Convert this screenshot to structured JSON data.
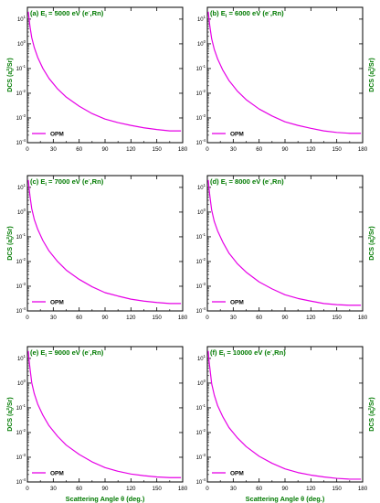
{
  "colors": {
    "curve": "#e600e6",
    "label": "#007a00",
    "axis": "#000000",
    "background": "#ffffff"
  },
  "chart_data": [
    {
      "type": "line",
      "panel": "(a)",
      "title_parts": [
        "(a) E",
        "i",
        " = 5000 eV (e",
        "-",
        ",Rn)"
      ],
      "ylabel_parts": [
        "DCS (a",
        "0",
        "2",
        "/Sr)"
      ],
      "ylabel_side": "left",
      "xlabel": "",
      "x_ticks": [
        0,
        30,
        60,
        90,
        120,
        150,
        180
      ],
      "y_ticks": [
        -4,
        -3,
        -2,
        -1,
        0,
        1
      ],
      "y_scale": "log",
      "xlim": [
        0,
        180
      ],
      "ylim": [
        0.0001,
        30
      ],
      "legend": "bottom-left",
      "series": [
        {
          "name": "OPM",
          "x": [
            1,
            2,
            3,
            5,
            8,
            12,
            18,
            25,
            35,
            45,
            60,
            75,
            90,
            105,
            120,
            135,
            150,
            165,
            178
          ],
          "y": [
            20,
            10,
            5,
            1.8,
            0.7,
            0.28,
            0.1,
            0.04,
            0.015,
            0.007,
            0.003,
            0.0015,
            0.0009,
            0.00065,
            0.0005,
            0.0004,
            0.00034,
            0.0003,
            0.0003
          ]
        }
      ]
    },
    {
      "type": "line",
      "panel": "(b)",
      "title_parts": [
        "(b) E",
        "i",
        " = 6000 eV (e",
        "-",
        ",Rn)"
      ],
      "ylabel_parts": [
        "DCS (a",
        "0",
        "2",
        "/Sr)"
      ],
      "ylabel_side": "right",
      "xlabel": "",
      "x_ticks": [
        0,
        30,
        60,
        90,
        120,
        150,
        180
      ],
      "y_ticks": [
        -4,
        -3,
        -2,
        -1,
        0,
        1
      ],
      "y_scale": "log",
      "xlim": [
        0,
        180
      ],
      "ylim": [
        0.0001,
        30
      ],
      "legend": "bottom-left",
      "series": [
        {
          "name": "OPM",
          "x": [
            1,
            2,
            3,
            5,
            8,
            12,
            18,
            25,
            35,
            45,
            60,
            75,
            90,
            105,
            120,
            135,
            150,
            165,
            178
          ],
          "y": [
            20,
            9.5,
            4.8,
            1.6,
            0.6,
            0.24,
            0.085,
            0.033,
            0.012,
            0.0055,
            0.0023,
            0.0012,
            0.0007,
            0.0005,
            0.00038,
            0.0003,
            0.00026,
            0.00024,
            0.00024
          ]
        }
      ]
    },
    {
      "type": "line",
      "panel": "(c)",
      "title_parts": [
        "(c) E",
        "i",
        " = 7000 eV (e",
        "-",
        ",Rn)"
      ],
      "ylabel_parts": [
        "DCS (a",
        "0",
        "2",
        "/Sr)"
      ],
      "ylabel_side": "left",
      "xlabel": "",
      "x_ticks": [
        0,
        30,
        60,
        90,
        120,
        150,
        180
      ],
      "y_ticks": [
        -4,
        -3,
        -2,
        -1,
        0,
        1
      ],
      "y_scale": "log",
      "xlim": [
        0,
        180
      ],
      "ylim": [
        0.0001,
        30
      ],
      "legend": "bottom-left",
      "series": [
        {
          "name": "OPM",
          "x": [
            1,
            2,
            3,
            5,
            8,
            12,
            18,
            25,
            35,
            45,
            60,
            75,
            90,
            105,
            120,
            135,
            150,
            165,
            178
          ],
          "y": [
            20,
            9,
            4.5,
            1.4,
            0.5,
            0.2,
            0.07,
            0.027,
            0.01,
            0.0045,
            0.0019,
            0.00095,
            0.00055,
            0.0004,
            0.0003,
            0.00025,
            0.00022,
            0.0002,
            0.0002
          ]
        }
      ]
    },
    {
      "type": "line",
      "panel": "(d)",
      "title_parts": [
        "(d) E",
        "i",
        " = 8000 eV (e",
        "-",
        ",Rn)"
      ],
      "ylabel_parts": [
        "DCS (a",
        "0",
        "2",
        "/Sr)"
      ],
      "ylabel_side": "right",
      "xlabel": "",
      "x_ticks": [
        0,
        30,
        60,
        90,
        120,
        150,
        180
      ],
      "y_ticks": [
        -4,
        -3,
        -2,
        -1,
        0,
        1
      ],
      "y_scale": "log",
      "xlim": [
        0,
        180
      ],
      "ylim": [
        0.0001,
        30
      ],
      "legend": "bottom-left",
      "series": [
        {
          "name": "OPM",
          "x": [
            1,
            2,
            3,
            5,
            8,
            12,
            18,
            25,
            35,
            45,
            60,
            75,
            90,
            105,
            120,
            135,
            150,
            165,
            178
          ],
          "y": [
            20,
            8.5,
            4.2,
            1.2,
            0.42,
            0.17,
            0.06,
            0.022,
            0.008,
            0.0037,
            0.0015,
            0.00078,
            0.00045,
            0.00032,
            0.00025,
            0.0002,
            0.00018,
            0.00017,
            0.00017
          ]
        }
      ]
    },
    {
      "type": "line",
      "panel": "(e)",
      "title_parts": [
        "(e) E",
        "i",
        " = 9000 eV (e",
        "-",
        ",Rn)"
      ],
      "ylabel_parts": [
        "DCS (a",
        "0",
        "2",
        "/Sr)"
      ],
      "ylabel_side": "left",
      "xlabel": "Scattering Angle θ (deg.)",
      "x_ticks": [
        0,
        30,
        60,
        90,
        120,
        150,
        180
      ],
      "y_ticks": [
        -4,
        -3,
        -2,
        -1,
        0,
        1
      ],
      "y_scale": "log",
      "xlim": [
        0,
        180
      ],
      "ylim": [
        0.0001,
        30
      ],
      "legend": "bottom-left",
      "series": [
        {
          "name": "OPM",
          "x": [
            1,
            2,
            3,
            5,
            8,
            12,
            18,
            25,
            35,
            45,
            60,
            75,
            90,
            105,
            120,
            135,
            150,
            165,
            178
          ],
          "y": [
            20,
            8,
            4,
            1.05,
            0.37,
            0.14,
            0.05,
            0.019,
            0.007,
            0.0031,
            0.0013,
            0.00065,
            0.00038,
            0.00027,
            0.00021,
            0.00018,
            0.00016,
            0.00015,
            0.00015
          ]
        }
      ]
    },
    {
      "type": "line",
      "panel": "(f)",
      "title_parts": [
        "(f) E",
        "i",
        " = 10000 eV (e",
        "-",
        ",Rn)"
      ],
      "ylabel_parts": [
        "DCS (a",
        "0",
        "2",
        "/Sr)"
      ],
      "ylabel_side": "right",
      "xlabel": "Scattering Angle θ (deg.)",
      "x_ticks": [
        0,
        30,
        60,
        90,
        120,
        150,
        180
      ],
      "y_ticks": [
        -4,
        -3,
        -2,
        -1,
        0,
        1
      ],
      "y_scale": "log",
      "xlim": [
        0,
        180
      ],
      "ylim": [
        0.0001,
        30
      ],
      "legend": "bottom-left",
      "series": [
        {
          "name": "OPM",
          "x": [
            1,
            2,
            3,
            5,
            8,
            12,
            18,
            25,
            35,
            45,
            60,
            75,
            90,
            105,
            120,
            135,
            150,
            165,
            178
          ],
          "y": [
            20,
            7.5,
            3.8,
            0.95,
            0.33,
            0.12,
            0.043,
            0.016,
            0.006,
            0.0027,
            0.0011,
            0.00057,
            0.00034,
            0.00024,
            0.00019,
            0.00016,
            0.00014,
            0.00013,
            0.00013
          ]
        }
      ]
    }
  ]
}
